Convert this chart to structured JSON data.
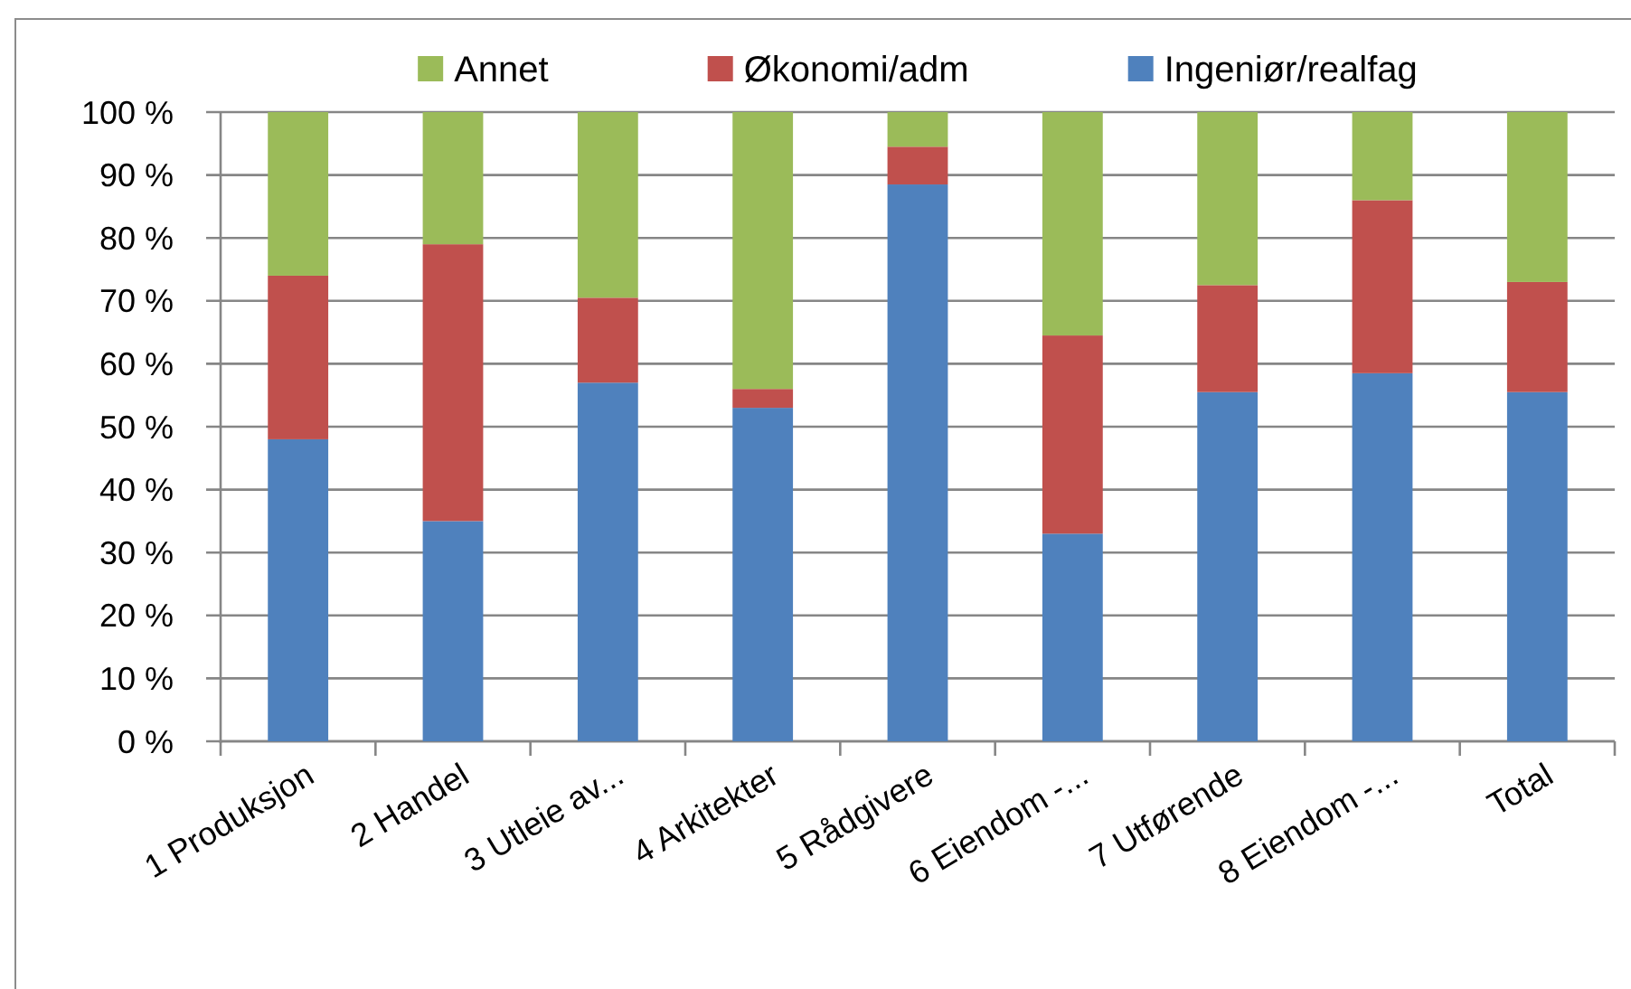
{
  "chart_data": {
    "type": "bar",
    "stacked": true,
    "categories": [
      "1 Produksjon",
      "2 Handel",
      "3 Utleie av...",
      "4 Arkitekter",
      "5 Rådgivere",
      "6 Eiendom -...",
      "7 Utførende",
      "8 Eiendom -...",
      "Total"
    ],
    "series": [
      {
        "name": "Ingeniør/realfag",
        "color": "#4f81bd",
        "values": [
          48,
          35,
          57,
          53,
          88.5,
          33,
          55.5,
          58.5,
          55.5
        ]
      },
      {
        "name": "Økonomi/adm",
        "color": "#c0504d",
        "values": [
          26,
          44,
          13.5,
          3,
          6,
          31.5,
          17,
          27.5,
          17.5
        ]
      },
      {
        "name": "Annet",
        "color": "#9bbb59",
        "values": [
          26,
          21,
          29.5,
          44,
          5.5,
          35.5,
          27.5,
          14,
          27
        ]
      }
    ],
    "ylim": [
      0,
      100
    ],
    "yticks": [
      {
        "value": 0,
        "label": "0 %"
      },
      {
        "value": 10,
        "label": "10 %"
      },
      {
        "value": 20,
        "label": "20 %"
      },
      {
        "value": 30,
        "label": "30 %"
      },
      {
        "value": 40,
        "label": "40 %"
      },
      {
        "value": 50,
        "label": "50 %"
      },
      {
        "value": 60,
        "label": "60 %"
      },
      {
        "value": 70,
        "label": "70 %"
      },
      {
        "value": 80,
        "label": "80 %"
      },
      {
        "value": 90,
        "label": "90 %"
      },
      {
        "value": 100,
        "label": "100 %"
      }
    ],
    "grid": "y",
    "legend": "top"
  }
}
